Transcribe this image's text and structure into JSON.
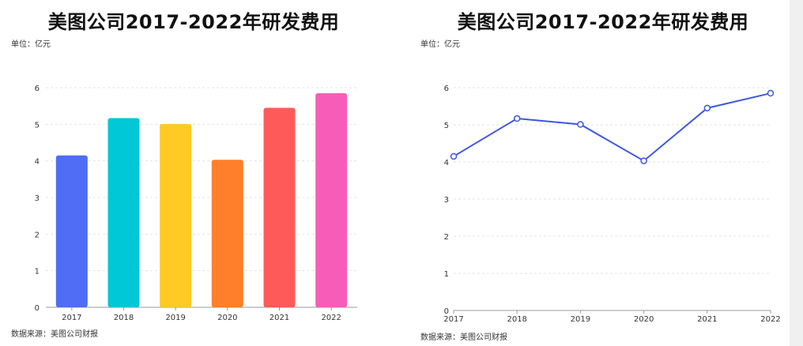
{
  "chart_data": [
    {
      "type": "bar",
      "title": "美图公司2017-2022年研发费用",
      "unit_label": "单位：亿元",
      "source_label": "数据来源：美图公司财报",
      "categories": [
        "2017",
        "2018",
        "2019",
        "2020",
        "2021",
        "2022"
      ],
      "values": [
        4.15,
        5.17,
        5.01,
        4.03,
        5.45,
        5.85
      ],
      "ylim": [
        0,
        6
      ],
      "yticks": [
        0,
        1,
        2,
        3,
        4,
        5,
        6
      ],
      "grid": true,
      "colors": [
        "#4f6df5",
        "#00c8d6",
        "#ffc926",
        "#ff7f2a",
        "#ff5a5a",
        "#f75db8"
      ]
    },
    {
      "type": "line",
      "title": "美图公司2017-2022年研发费用",
      "unit_label": "单位：亿元",
      "source_label": "数据来源：美图公司财报",
      "categories": [
        "2017",
        "2018",
        "2019",
        "2020",
        "2021",
        "2022"
      ],
      "values": [
        4.15,
        5.17,
        5.01,
        4.03,
        5.45,
        5.85
      ],
      "ylim": [
        0,
        6
      ],
      "yticks": [
        0,
        1,
        2,
        3,
        4,
        5,
        6
      ],
      "grid": true,
      "colors": [
        "#3d57e0"
      ]
    }
  ]
}
